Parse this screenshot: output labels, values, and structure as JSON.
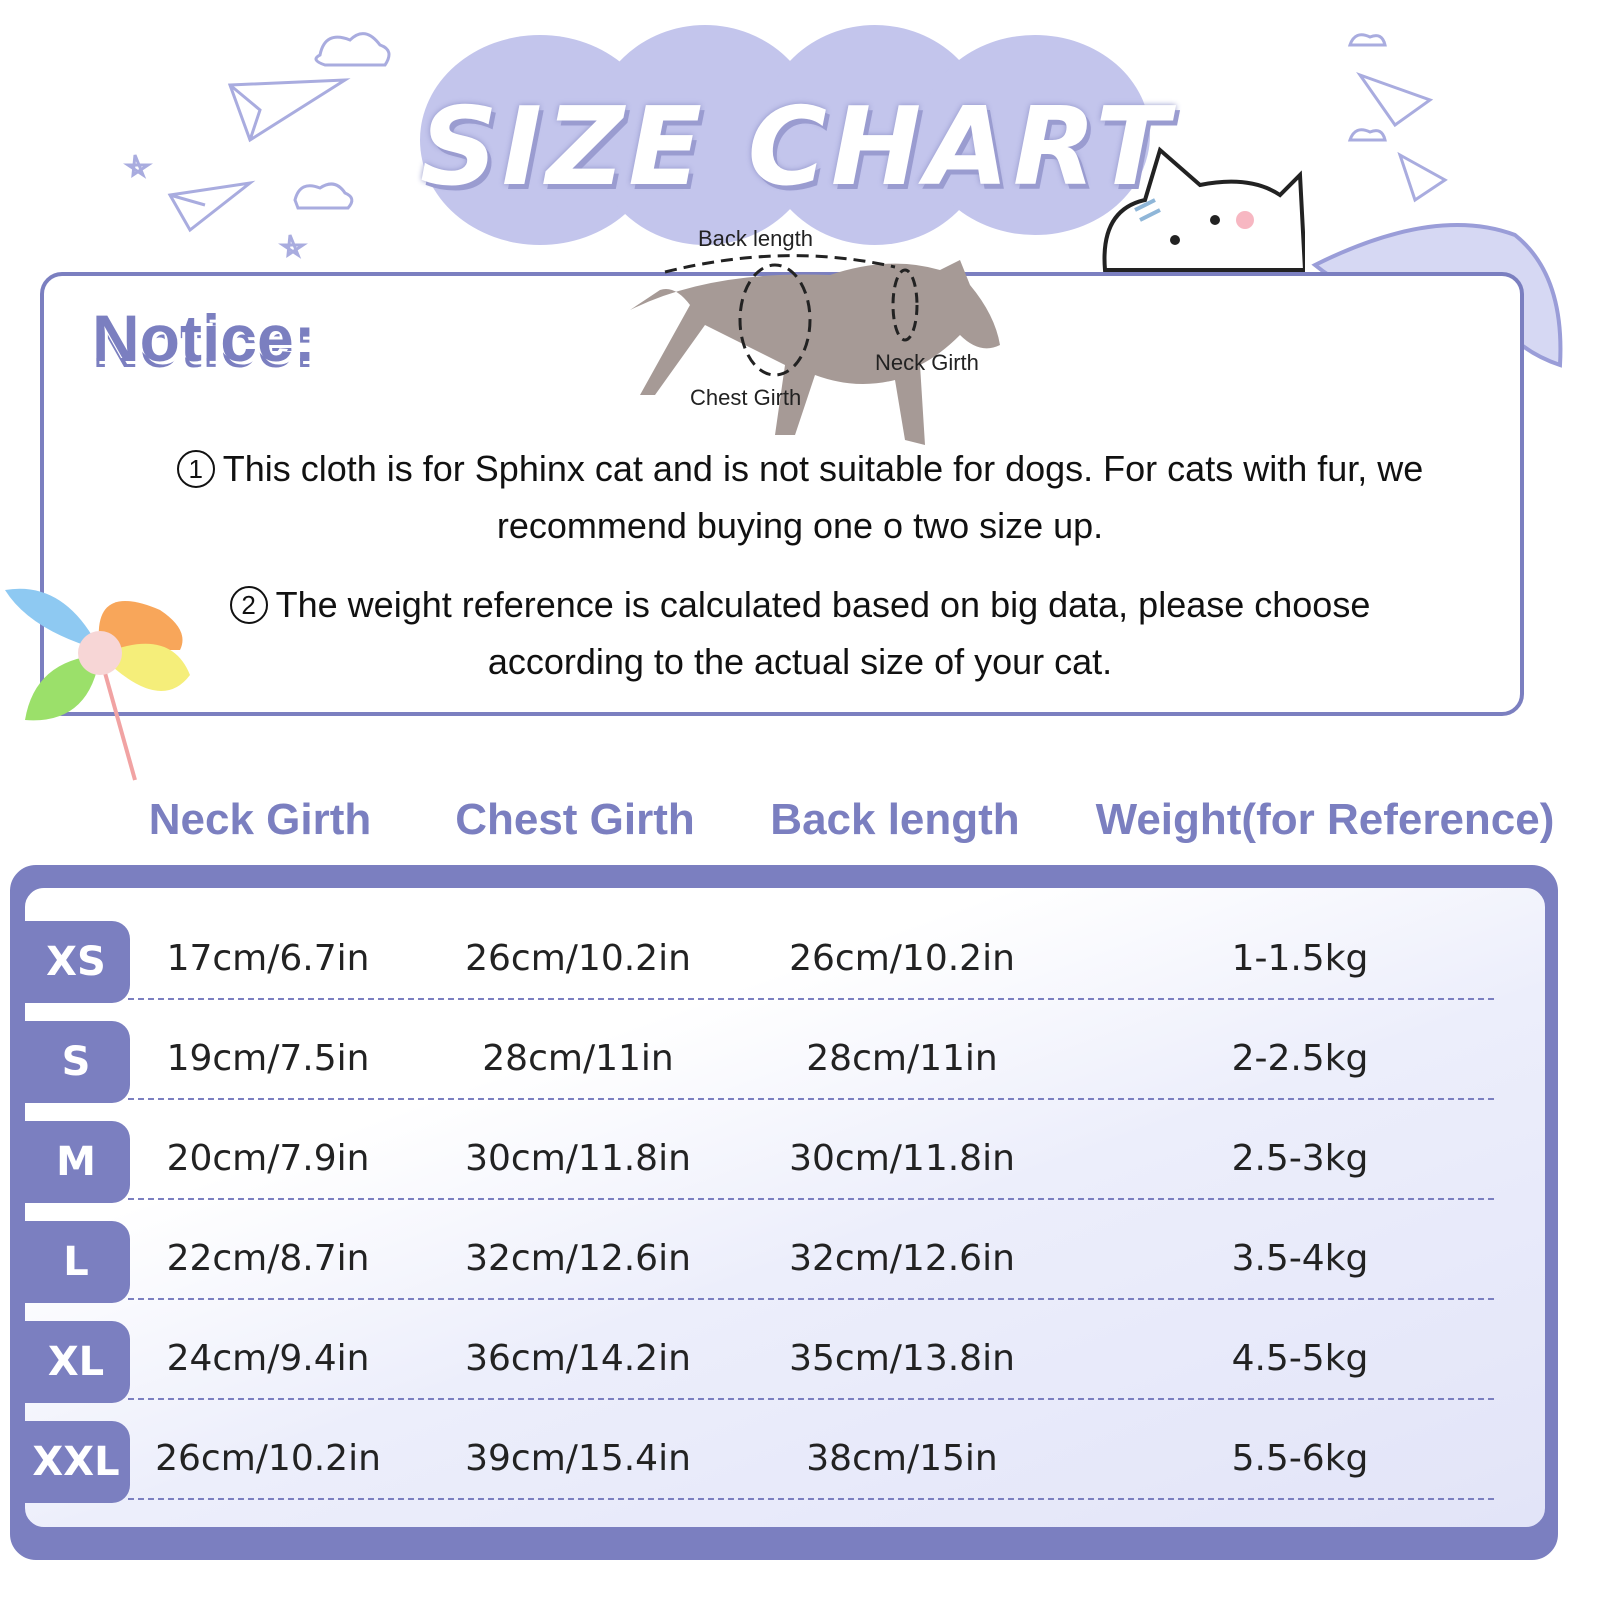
{
  "title": "SIZE CHART",
  "diagram_labels": {
    "back": "Back length",
    "neck": "Neck Girth",
    "chest": "Chest Girth"
  },
  "notice": {
    "heading": "Notice:",
    "items": [
      {
        "marker": "1",
        "line1": "This cloth is for Sphinx cat and is not suitable for dogs. For cats with fur, we",
        "line2": "recommend buying one o two size up."
      },
      {
        "marker": "2",
        "line1": "The weight reference is calculated based on big data, please choose",
        "line2": "according to the actual size of your cat."
      }
    ]
  },
  "table": {
    "headers": [
      "Neck Girth",
      "Chest Girth",
      "Back length",
      "Weight(for Reference)"
    ],
    "rows": [
      {
        "size": "XS",
        "cells": [
          "17cm/6.7in",
          "26cm/10.2in",
          "26cm/10.2in",
          "1-1.5kg"
        ]
      },
      {
        "size": "S",
        "cells": [
          "19cm/7.5in",
          "28cm/11in",
          "28cm/11in",
          "2-2.5kg"
        ]
      },
      {
        "size": "M",
        "cells": [
          "20cm/7.9in",
          "30cm/11.8in",
          "30cm/11.8in",
          "2.5-3kg"
        ]
      },
      {
        "size": "L",
        "cells": [
          "22cm/8.7in",
          "32cm/12.6in",
          "32cm/12.6in",
          "3.5-4kg"
        ]
      },
      {
        "size": "XL",
        "cells": [
          "24cm/9.4in",
          "36cm/14.2in",
          "35cm/13.8in",
          "4.5-5kg"
        ]
      },
      {
        "size": "XXL",
        "cells": [
          "26cm/10.2in",
          "39cm/15.4in",
          "38cm/15in",
          "5.5-6kg"
        ]
      }
    ]
  },
  "colors": {
    "accent": "#7b7fc0",
    "bubble": "#c3c5ec"
  }
}
